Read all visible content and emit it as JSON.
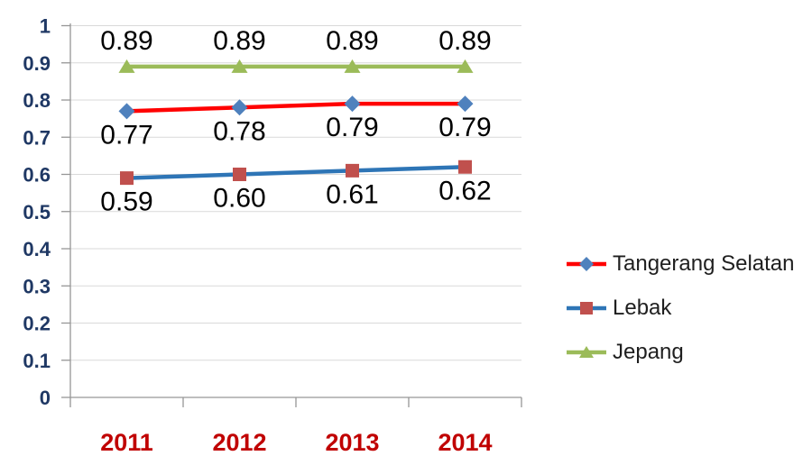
{
  "chart_data": {
    "type": "line",
    "title": "",
    "categories": [
      "2011",
      "2012",
      "2013",
      "2014"
    ],
    "series": [
      {
        "name": "Tangerang Selatan",
        "values": [
          0.77,
          0.78,
          0.79,
          0.79
        ],
        "labels": [
          "0.77",
          "0.78",
          "0.79",
          "0.79"
        ],
        "line_color": "#FF0000",
        "marker": "diamond",
        "marker_color": "#4F81BD",
        "label_position": "below"
      },
      {
        "name": "Lebak",
        "values": [
          0.59,
          0.6,
          0.61,
          0.62
        ],
        "labels": [
          "0.59",
          "0.60",
          "0.61",
          "0.62"
        ],
        "line_color": "#2E75B6",
        "marker": "square",
        "marker_color": "#C0504D",
        "label_position": "below"
      },
      {
        "name": "Jepang",
        "values": [
          0.89,
          0.89,
          0.89,
          0.89
        ],
        "labels": [
          "0.89",
          "0.89",
          "0.89",
          "0.89"
        ],
        "line_color": "#9BBB59",
        "marker": "triangle",
        "marker_color": "#9BBB59",
        "label_position": "above"
      }
    ],
    "ylim": [
      0,
      1
    ],
    "ytick_step": 0.1,
    "ytick_labels": [
      "0",
      "0.1",
      "0.2",
      "0.3",
      "0.4",
      "0.5",
      "0.6",
      "0.7",
      "0.8",
      "0.9",
      "1"
    ],
    "grid": true,
    "legend_position": "right",
    "styles": {
      "y_tick_label_color": "#1F3864",
      "x_tick_label_color": "#C00000",
      "data_label_color": "#000000",
      "legend_text_color": "#1F1F1F",
      "grid_color": "#D9D9D9",
      "axis_color": "#969696",
      "background": "#FFFFFF"
    }
  }
}
